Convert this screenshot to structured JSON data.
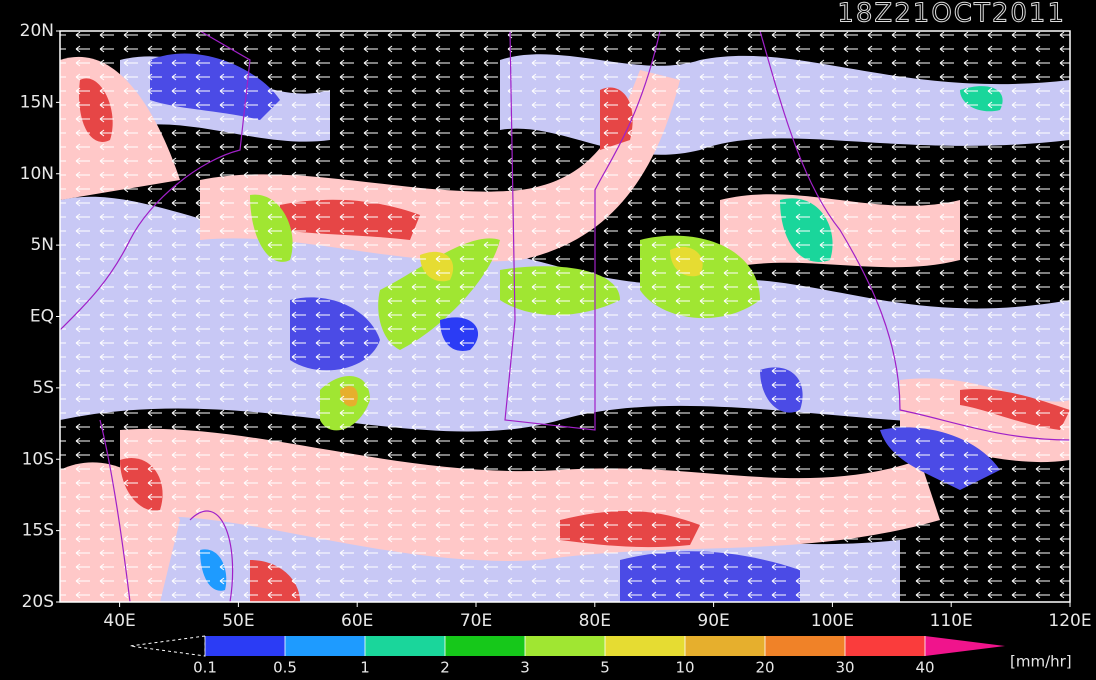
{
  "title": "18Z21OCT2011",
  "lat_labels": [
    "20N",
    "15N",
    "10N",
    "5N",
    "EQ",
    "5S",
    "10S",
    "15S",
    "20S"
  ],
  "lon_labels": [
    "40E",
    "50E",
    "60E",
    "70E",
    "80E",
    "90E",
    "100E",
    "110E",
    "120E"
  ],
  "colorbar": {
    "labels": [
      "0.1",
      "0.5",
      "1",
      "2",
      "3",
      "5",
      "10",
      "20",
      "30",
      "40"
    ],
    "colors": [
      "#2b3cf5",
      "#1e9bff",
      "#1ad69b",
      "#16c81a",
      "#a0e632",
      "#e6dc32",
      "#e6af2d",
      "#f08228",
      "#fa3c3c"
    ],
    "over_color": "#f0148c",
    "unit": "[mm/hr]"
  }
}
